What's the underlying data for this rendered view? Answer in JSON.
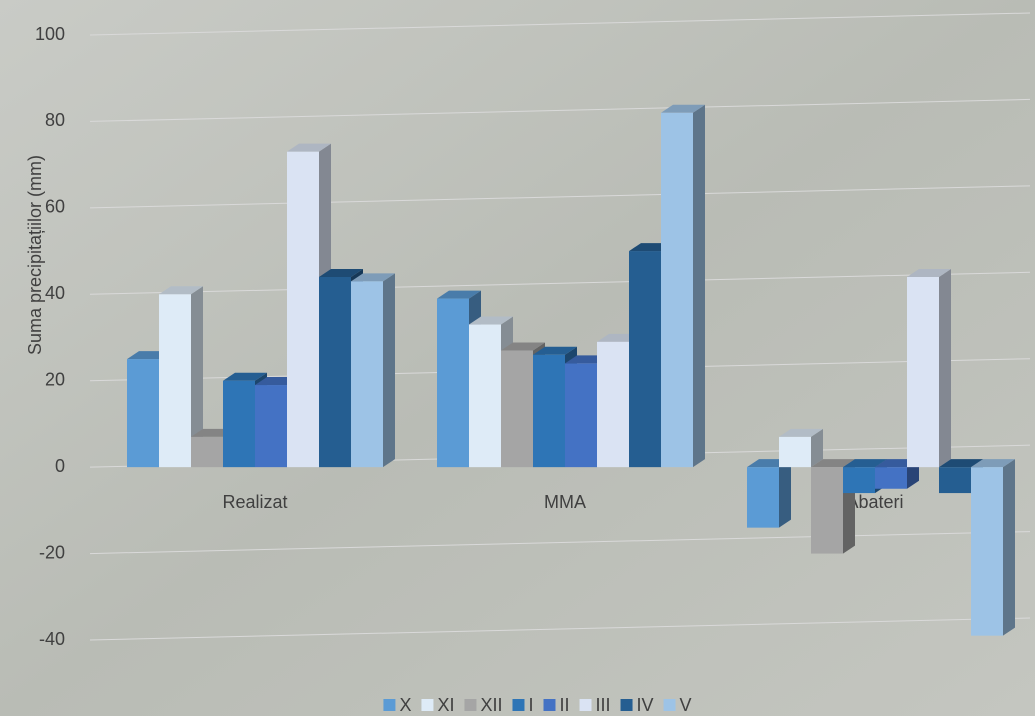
{
  "chart_data": {
    "type": "bar3d",
    "y_label": "Suma precipitațiilor  (mm)",
    "categories": [
      "Realizat",
      "MMA",
      "Abateri"
    ],
    "series": [
      {
        "name": "X",
        "color": "#5b9bd5",
        "values": [
          25,
          39,
          -14
        ]
      },
      {
        "name": "XI",
        "color": "#deebf7",
        "values": [
          40,
          33,
          7
        ]
      },
      {
        "name": "XII",
        "color": "#a5a5a5",
        "values": [
          7,
          27,
          -20
        ]
      },
      {
        "name": "I",
        "color": "#2e75b6",
        "values": [
          20,
          26,
          -6
        ]
      },
      {
        "name": "II",
        "color": "#4472c4",
        "values": [
          19,
          24,
          -5
        ]
      },
      {
        "name": "III",
        "color": "#dae3f3",
        "values": [
          73,
          29,
          44
        ]
      },
      {
        "name": "IV",
        "color": "#255e91",
        "values": [
          44,
          50,
          -6
        ]
      },
      {
        "name": "V",
        "color": "#9dc3e6",
        "values": [
          43,
          82,
          -39
        ]
      }
    ],
    "ylim": [
      -40,
      100
    ],
    "yticks": [
      -40,
      -20,
      0,
      20,
      40,
      60,
      80,
      100
    ],
    "grid": true
  }
}
